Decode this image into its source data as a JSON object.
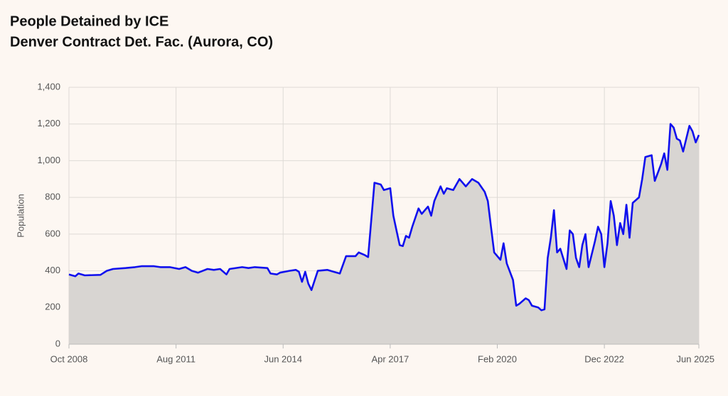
{
  "chart_data": {
    "type": "line",
    "title": "People Detained by ICE",
    "subtitle": "Denver Contract Det. Fac. (Aurora, CO)",
    "y_label": "Population",
    "grid": true,
    "area_color": "#d8d5d2",
    "x": [
      "2008-10",
      "2008-12",
      "2009-01",
      "2009-03",
      "2009-08",
      "2009-10",
      "2009-12",
      "2010-04",
      "2010-07",
      "2010-09",
      "2011-01",
      "2011-03",
      "2011-06",
      "2011-09",
      "2011-11",
      "2012-01",
      "2012-03",
      "2012-06",
      "2012-08",
      "2012-10",
      "2012-12",
      "2013-01",
      "2013-05",
      "2013-07",
      "2013-09",
      "2014-01",
      "2014-02",
      "2014-04",
      "2014-05",
      "2014-08",
      "2014-10",
      "2014-11",
      "2014-12",
      "2015-01",
      "2015-02",
      "2015-03",
      "2015-05",
      "2015-08",
      "2015-10",
      "2015-12",
      "2016-02",
      "2016-05",
      "2016-06",
      "2016-08",
      "2016-09",
      "2016-11",
      "2017-01",
      "2017-02",
      "2017-04",
      "2017-05",
      "2017-06",
      "2017-07",
      "2017-08",
      "2017-09",
      "2017-10",
      "2017-11",
      "2018-01",
      "2018-02",
      "2018-04",
      "2018-05",
      "2018-06",
      "2018-08",
      "2018-09",
      "2018-10",
      "2018-12",
      "2019-02",
      "2019-04",
      "2019-06",
      "2019-08",
      "2019-10",
      "2019-11",
      "2019-12",
      "2020-01",
      "2020-03",
      "2020-04",
      "2020-05",
      "2020-07",
      "2020-08",
      "2020-09",
      "2020-11",
      "2020-12",
      "2021-01",
      "2021-03",
      "2021-04",
      "2021-05",
      "2021-06",
      "2021-07",
      "2021-08",
      "2021-09",
      "2021-10",
      "2021-12",
      "2022-01",
      "2022-02",
      "2022-03",
      "2022-04",
      "2022-05",
      "2022-06",
      "2022-07",
      "2022-09",
      "2022-10",
      "2022-11",
      "2022-12",
      "2023-01",
      "2023-02",
      "2023-03",
      "2023-04",
      "2023-05",
      "2023-06",
      "2023-07",
      "2023-08",
      "2023-09",
      "2023-11",
      "2023-12",
      "2024-01",
      "2024-03",
      "2024-04",
      "2024-06",
      "2024-07",
      "2024-08",
      "2024-09",
      "2024-10",
      "2024-11",
      "2024-12",
      "2025-01",
      "2025-03",
      "2025-04",
      "2025-05",
      "2025-06"
    ],
    "series": [
      {
        "name": "Population",
        "color": "#1010ee",
        "values": [
          380,
          370,
          385,
          375,
          378,
          400,
          410,
          415,
          420,
          425,
          425,
          420,
          420,
          410,
          420,
          400,
          390,
          410,
          405,
          410,
          380,
          410,
          420,
          415,
          420,
          415,
          385,
          380,
          390,
          400,
          405,
          395,
          340,
          395,
          330,
          295,
          400,
          405,
          395,
          385,
          480,
          480,
          500,
          485,
          475,
          880,
          870,
          840,
          850,
          700,
          620,
          540,
          535,
          590,
          580,
          640,
          740,
          710,
          750,
          700,
          780,
          860,
          820,
          850,
          840,
          900,
          860,
          900,
          880,
          830,
          780,
          640,
          500,
          460,
          550,
          440,
          350,
          210,
          220,
          250,
          240,
          210,
          200,
          185,
          190,
          470,
          580,
          730,
          500,
          520,
          410,
          620,
          600,
          470,
          420,
          540,
          600,
          420,
          560,
          640,
          600,
          420,
          550,
          780,
          700,
          540,
          660,
          600,
          760,
          580,
          770,
          800,
          900,
          1020,
          1030,
          890,
          980,
          1040,
          950,
          1200,
          1180,
          1120,
          1110,
          1050,
          1190,
          1160,
          1100,
          1140
        ]
      }
    ],
    "xlim": [
      "2008-10",
      "2025-06"
    ],
    "xticks": [
      {
        "value": "2008-10",
        "label": "Oct 2008"
      },
      {
        "value": "2011-08",
        "label": "Aug 2011"
      },
      {
        "value": "2014-06",
        "label": "Jun 2014"
      },
      {
        "value": "2017-04",
        "label": "Apr 2017"
      },
      {
        "value": "2020-02",
        "label": "Feb 2020"
      },
      {
        "value": "2022-12",
        "label": "Dec 2022"
      },
      {
        "value": "2025-06",
        "label": "Jun 2025"
      }
    ],
    "ylim": [
      0,
      1400
    ],
    "yticks": [
      0,
      200,
      400,
      600,
      800,
      {
        "value": 1000,
        "label": "1,000"
      },
      {
        "value": 1200,
        "label": "1,200"
      },
      {
        "value": 1400,
        "label": "1,400"
      }
    ]
  }
}
